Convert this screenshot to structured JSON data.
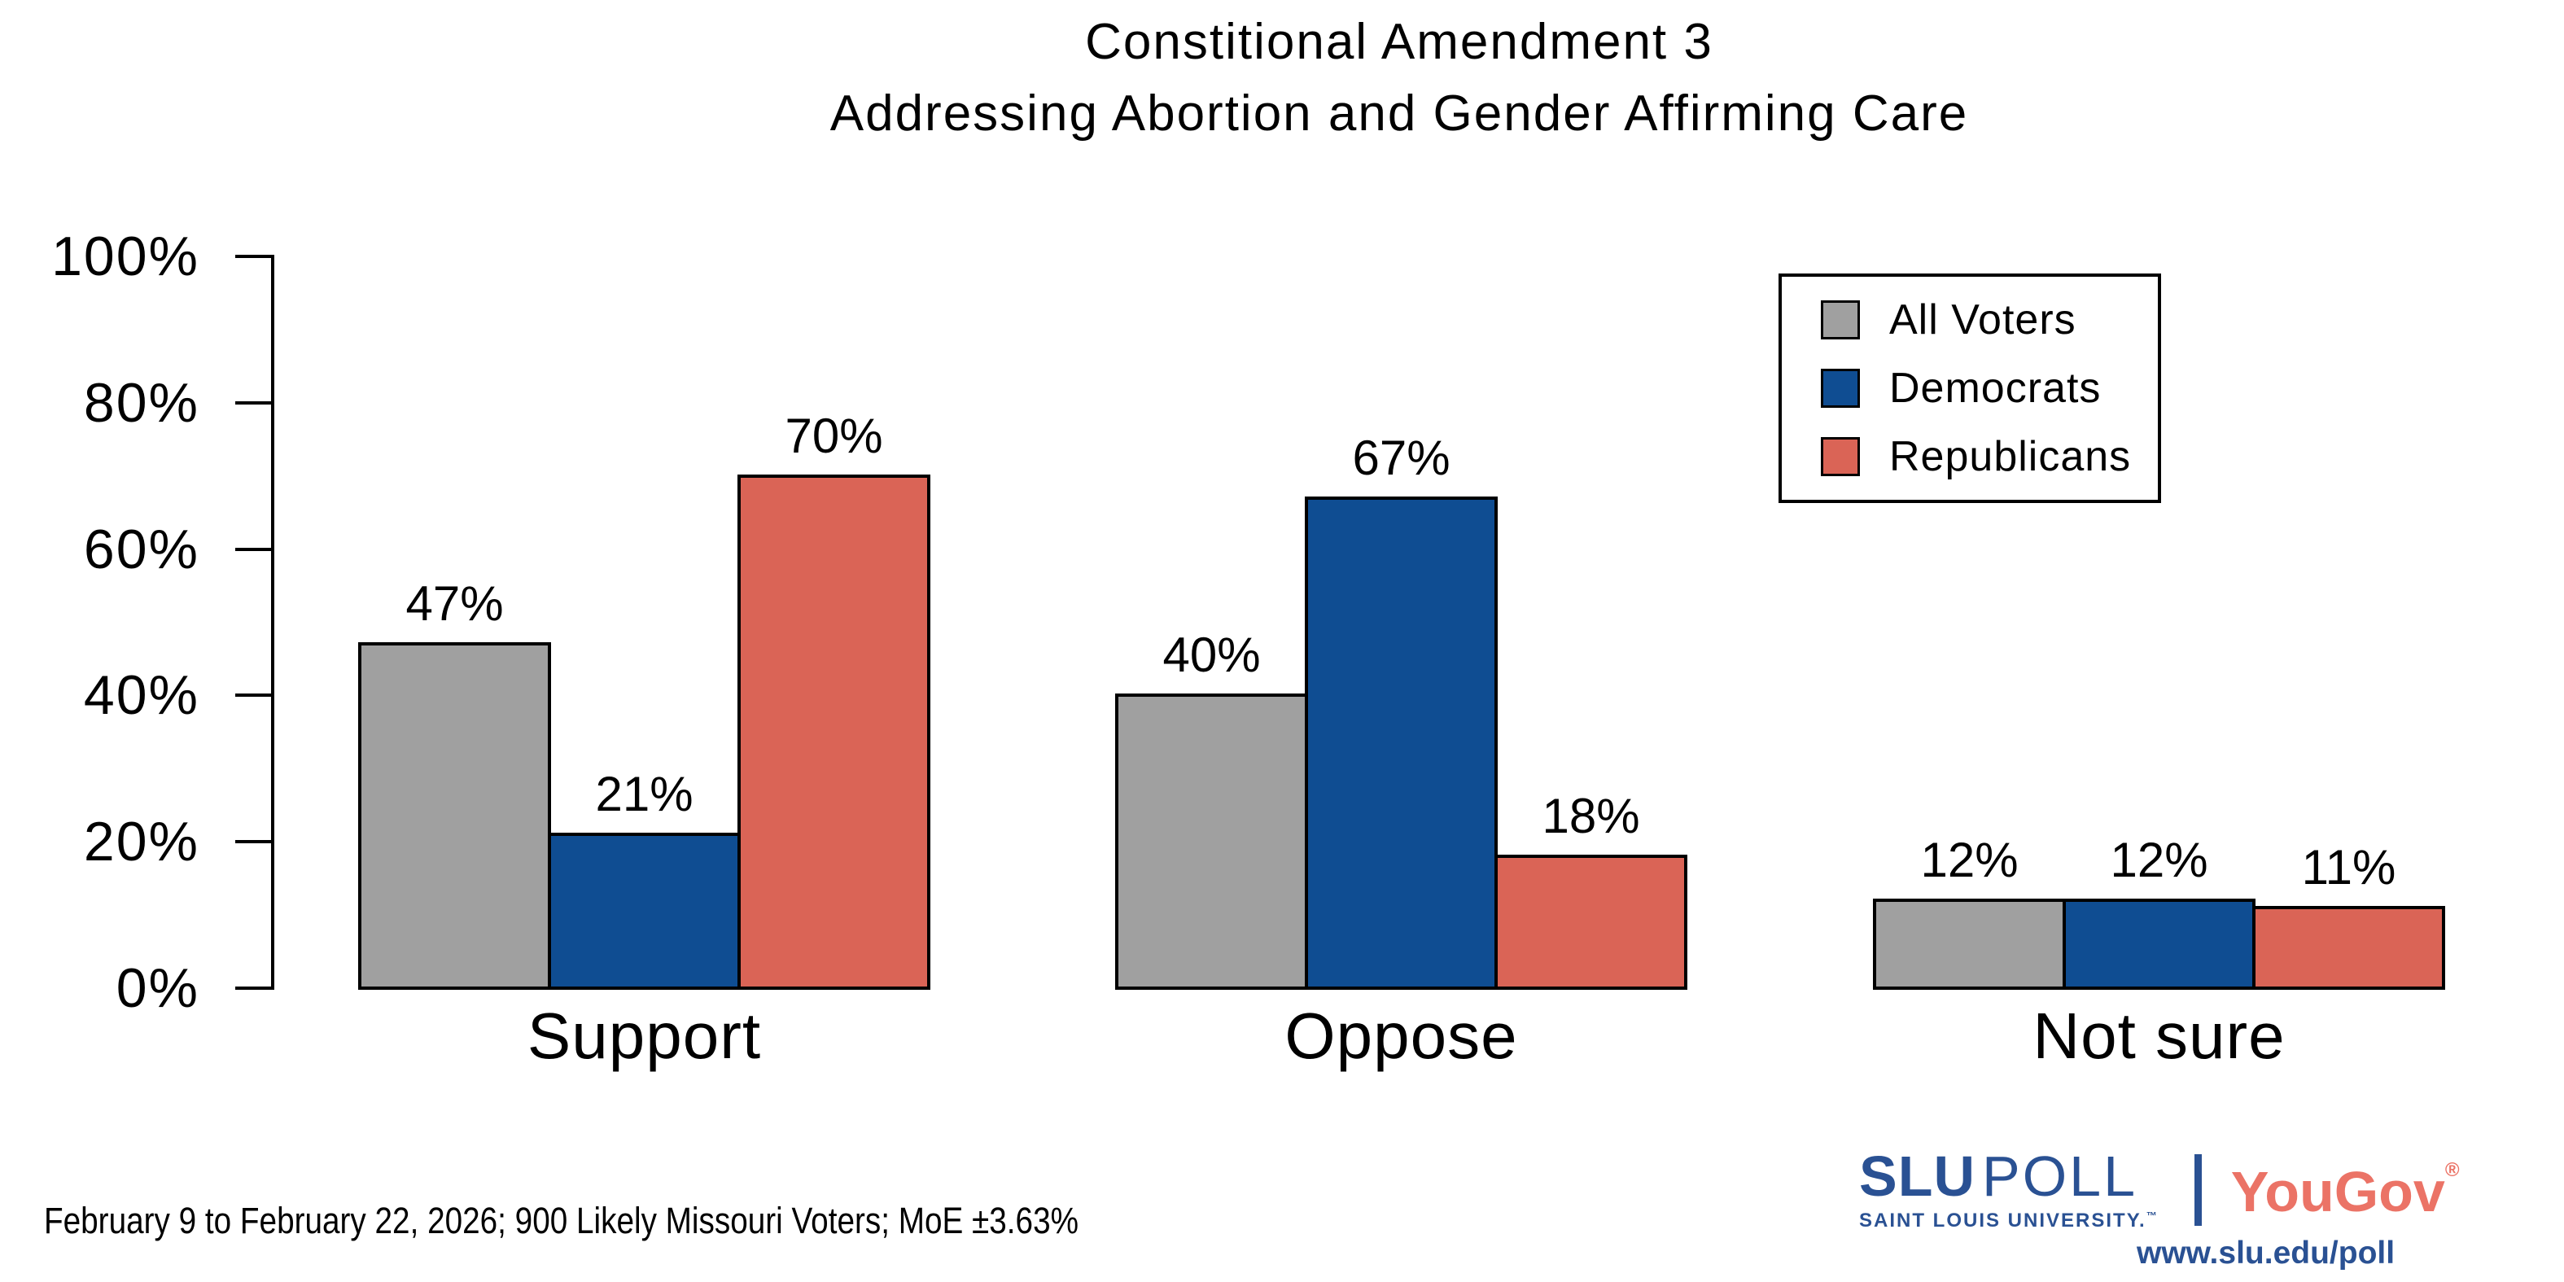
{
  "title": {
    "line1": "Constitional Amendment 3",
    "line2": "Addressing Abortion and Gender Affirming Care"
  },
  "chart_data": {
    "type": "bar",
    "categories": [
      "Support",
      "Oppose",
      "Not sure"
    ],
    "series": [
      {
        "name": "All Voters",
        "color": "#A0A0A0",
        "values": [
          47,
          40,
          12
        ]
      },
      {
        "name": "Democrats",
        "color": "#0F4D92",
        "values": [
          21,
          67,
          12
        ]
      },
      {
        "name": "Republicans",
        "color": "#DA6456",
        "values": [
          70,
          18,
          11
        ]
      }
    ],
    "value_label_suffix": "%",
    "title": "Constitional Amendment 3 Addressing Abortion and Gender Affirming Care",
    "xlabel": "",
    "ylabel": "",
    "ylim": [
      0,
      100
    ],
    "yticks": [
      {
        "label": "0%",
        "value": 0
      },
      {
        "label": "20%",
        "value": 20
      },
      {
        "label": "40%",
        "value": 40
      },
      {
        "label": "60%",
        "value": 60
      },
      {
        "label": "80%",
        "value": 80
      },
      {
        "label": "100%",
        "value": 100
      }
    ],
    "grid": false,
    "legend_position": "top-right",
    "bar_border_color": "#000000"
  },
  "footer": {
    "note": "February 9 to February 22, 2026; 900 Likely Missouri Voters; MoE ±3.63%"
  },
  "branding": {
    "slu": "SLU",
    "poll": "POLL",
    "university": "SAINT LOUIS UNIVERSITY.",
    "tm": "™",
    "yougov": "YouGov",
    "registered": "®",
    "url": "www.slu.edu/poll",
    "slu_blue": "#2A5193",
    "yougov_red": "#EB7366"
  }
}
